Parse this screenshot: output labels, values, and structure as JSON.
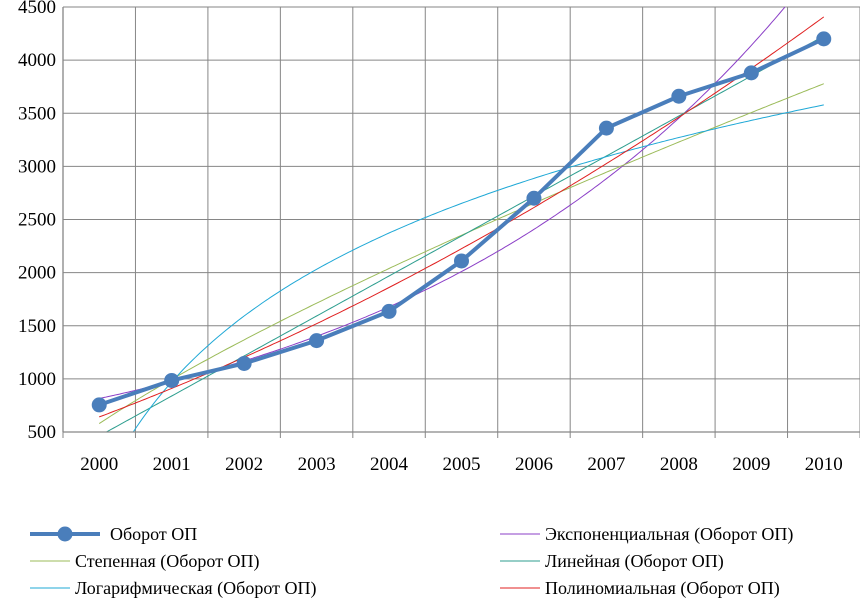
{
  "chart_data": {
    "type": "line",
    "title": "",
    "xlabel": "",
    "ylabel": "",
    "categories": [
      "2000",
      "2001",
      "2002",
      "2003",
      "2004",
      "2005",
      "2006",
      "2007",
      "2008",
      "2009",
      "2010"
    ],
    "ylim": [
      500,
      4500
    ],
    "yticks": [
      500,
      1000,
      1500,
      2000,
      2500,
      3000,
      3500,
      4000,
      4500
    ],
    "grid": "vertical-and-horizontal",
    "legend_position": "bottom",
    "series": [
      {
        "name": "Оборот ОП",
        "color": "#4A7EBB",
        "marker": "circle",
        "values": [
          755,
          985,
          1145,
          1360,
          1635,
          2110,
          2700,
          3360,
          3660,
          3880,
          4200
        ]
      }
    ],
    "trendlines": [
      {
        "name": "Экспоненциальная (Оборот ОП)",
        "color": "#8B3FC7",
        "kind": "exponential"
      },
      {
        "name": "Степенная (Оборот ОП)",
        "color": "#9BBB59",
        "kind": "power"
      },
      {
        "name": "Линейная (Оборот ОП)",
        "color": "#2E9E8F",
        "kind": "linear"
      },
      {
        "name": "Логарифмическая (Оборот ОП)",
        "color": "#1FA8D6",
        "kind": "logarithmic"
      },
      {
        "name": "Полиномиальная (Оборот ОП)",
        "color": "#E02020",
        "kind": "polynomial"
      }
    ]
  }
}
